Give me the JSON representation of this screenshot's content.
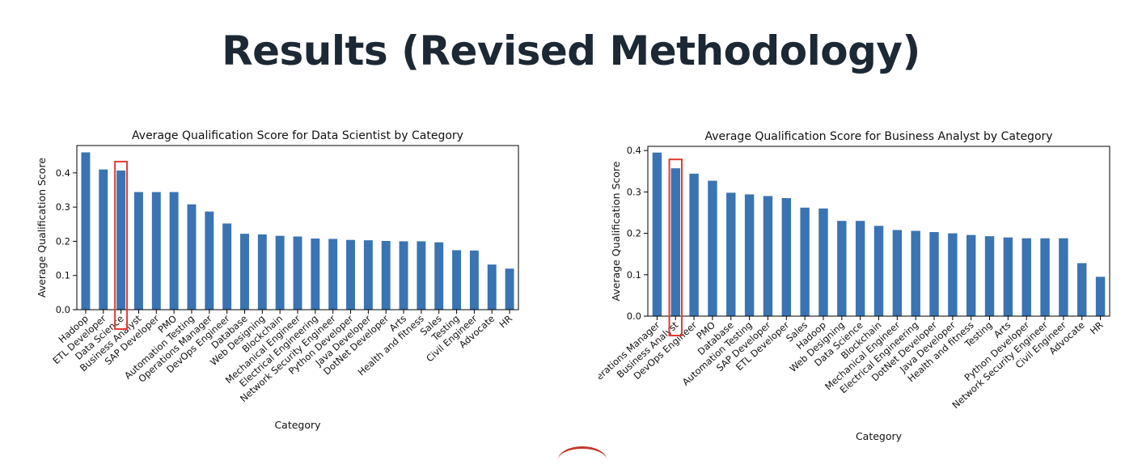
{
  "slide": {
    "title": "Results (Revised Methodology)"
  },
  "chart_data": [
    {
      "type": "bar",
      "title": "Average Qualification Score for Data Scientist by Category",
      "xlabel": "Category",
      "ylabel": "Average Qualification Score",
      "ylim": [
        0,
        0.48
      ],
      "yticks": [
        0.0,
        0.1,
        0.2,
        0.3,
        0.4
      ],
      "bar_color": "#3a74b2",
      "highlight_color": "#e53935",
      "highlight_category": "Data Science",
      "grid": false,
      "categories": [
        "Hadoop",
        "ETL Developer",
        "Data Science",
        "Business Analyst",
        "SAP Developer",
        "PMO",
        "Automation Testing",
        "Operations Manager",
        "DevOps Engineer",
        "Database",
        "Web Designing",
        "Blockchain",
        "Mechanical Engineer",
        "Electrical Engineering",
        "Network Security Engineer",
        "Python Developer",
        "Java Developer",
        "DotNet Developer",
        "Arts",
        "Health and fitness",
        "Sales",
        "Testing",
        "Civil Engineer",
        "Advocate",
        "HR"
      ],
      "values": [
        0.46,
        0.41,
        0.407,
        0.344,
        0.344,
        0.344,
        0.308,
        0.287,
        0.252,
        0.222,
        0.22,
        0.216,
        0.214,
        0.208,
        0.207,
        0.204,
        0.203,
        0.201,
        0.2,
        0.2,
        0.197,
        0.174,
        0.173,
        0.132,
        0.12
      ]
    },
    {
      "type": "bar",
      "title": "Average Qualification Score for Business Analyst by Category",
      "xlabel": "Category",
      "ylabel": "Average Qualification Score",
      "ylim": [
        0,
        0.41
      ],
      "yticks": [
        0.0,
        0.1,
        0.2,
        0.3,
        0.4
      ],
      "bar_color": "#3a74b2",
      "highlight_color": "#e53935",
      "highlight_category": "Business Analyst",
      "grid": false,
      "categories": [
        "Operations Manager",
        "Business Analyst",
        "DevOps Engineer",
        "PMO",
        "Database",
        "Automation Testing",
        "SAP Developer",
        "ETL Developer",
        "Sales",
        "Hadoop",
        "Web Designing",
        "Data Science",
        "Blockchain",
        "Mechanical Engineer",
        "Electrical Engineering",
        "DotNet Developer",
        "Java Developer",
        "Health and fitness",
        "Testing",
        "Arts",
        "Python Developer",
        "Network Security Engineer",
        "Civil Engineer",
        "Advocate",
        "HR"
      ],
      "values": [
        0.395,
        0.357,
        0.344,
        0.327,
        0.298,
        0.294,
        0.29,
        0.285,
        0.262,
        0.26,
        0.23,
        0.23,
        0.218,
        0.208,
        0.206,
        0.203,
        0.2,
        0.196,
        0.193,
        0.19,
        0.188,
        0.188,
        0.188,
        0.128,
        0.095
      ]
    }
  ]
}
